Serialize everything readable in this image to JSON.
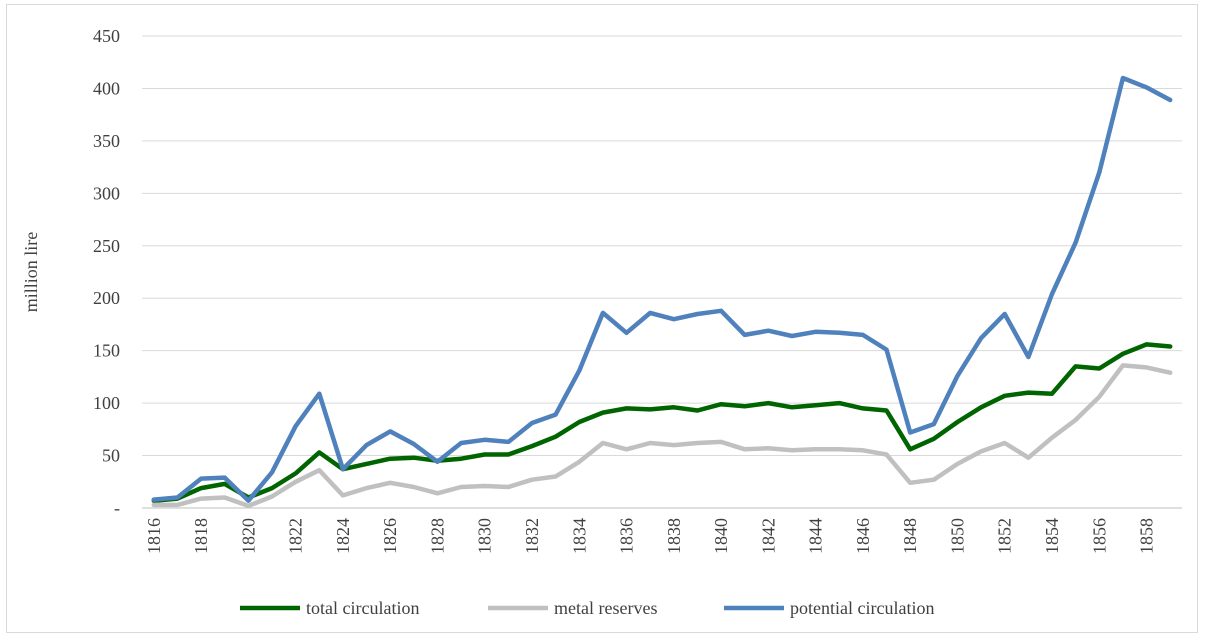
{
  "chart_data": {
    "type": "line",
    "title": "",
    "xlabel": "",
    "ylabel": "million lire",
    "ylim": [
      0,
      450
    ],
    "yticks": [
      0,
      50,
      100,
      150,
      200,
      250,
      300,
      350,
      400,
      450
    ],
    "ytick_labels": [
      "-",
      "50",
      "100",
      "150",
      "200",
      "250",
      "300",
      "350",
      "400",
      "450"
    ],
    "grid": "horizontal",
    "legend_position": "bottom",
    "x": [
      1816,
      1817,
      1818,
      1819,
      1820,
      1821,
      1822,
      1823,
      1824,
      1825,
      1826,
      1827,
      1828,
      1829,
      1830,
      1831,
      1832,
      1833,
      1834,
      1835,
      1836,
      1837,
      1838,
      1839,
      1840,
      1841,
      1842,
      1843,
      1844,
      1845,
      1846,
      1847,
      1848,
      1849,
      1850,
      1851,
      1852,
      1853,
      1854,
      1855,
      1856,
      1857,
      1858,
      1859
    ],
    "xtick_labels": [
      "1816",
      "1818",
      "1820",
      "1822",
      "1824",
      "1826",
      "1828",
      "1830",
      "1832",
      "1834",
      "1836",
      "1838",
      "1840",
      "1842",
      "1844",
      "1846",
      "1848",
      "1850",
      "1852",
      "1854",
      "1856",
      "1858"
    ],
    "series": [
      {
        "name": "total circulation",
        "color": "#006400",
        "values": [
          7,
          9,
          19,
          23,
          10,
          19,
          33,
          53,
          37,
          42,
          47,
          48,
          45,
          47,
          51,
          51,
          59,
          68,
          82,
          91,
          95,
          94,
          96,
          93,
          99,
          97,
          100,
          96,
          98,
          100,
          95,
          93,
          56,
          66,
          82,
          96,
          107,
          110,
          109,
          135,
          133,
          147,
          156,
          154
        ]
      },
      {
        "name": "metal reserves",
        "color": "#c0c0c0",
        "values": [
          3,
          3,
          9,
          10,
          2,
          11,
          25,
          36,
          12,
          19,
          24,
          20,
          14,
          20,
          21,
          20,
          27,
          30,
          44,
          62,
          56,
          62,
          60,
          62,
          63,
          56,
          57,
          55,
          56,
          56,
          55,
          51,
          24,
          27,
          42,
          54,
          62,
          48,
          67,
          84,
          106,
          136,
          134,
          129
        ]
      },
      {
        "name": "potential circulation",
        "color": "#4f81bd",
        "values": [
          8,
          10,
          28,
          29,
          7,
          34,
          78,
          109,
          37,
          60,
          73,
          61,
          44,
          62,
          65,
          63,
          81,
          89,
          131,
          186,
          167,
          186,
          180,
          185,
          188,
          165,
          169,
          164,
          168,
          167,
          165,
          151,
          72,
          80,
          126,
          162,
          185,
          144,
          204,
          253,
          320,
          410,
          401,
          389
        ]
      }
    ]
  }
}
